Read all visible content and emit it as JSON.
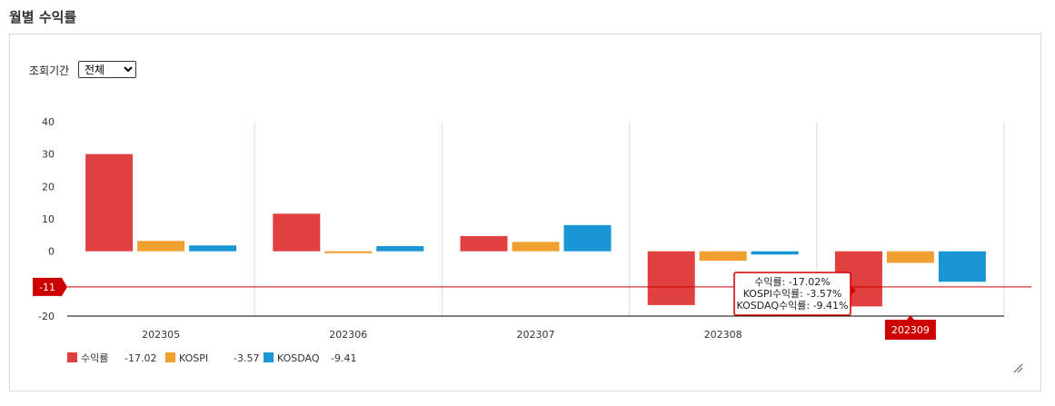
{
  "page": {
    "title": "월별 수익률",
    "period_label": "조회기간",
    "period_options": [
      "전체"
    ],
    "period_selected": "전체"
  },
  "chart_data": {
    "type": "bar",
    "categories": [
      "202305",
      "202306",
      "202307",
      "202308",
      "202309"
    ],
    "series": [
      {
        "name": "수익률",
        "color": "#e04040",
        "values": [
          30.0,
          11.6,
          4.7,
          -16.6,
          -17.02
        ]
      },
      {
        "name": "KOSPI",
        "color": "#f0a030",
        "values": [
          3.2,
          -0.6,
          2.9,
          -2.9,
          -3.57
        ]
      },
      {
        "name": "KOSDAQ",
        "color": "#1a96d4",
        "values": [
          1.8,
          1.6,
          8.1,
          -1.0,
          -9.41
        ]
      }
    ],
    "ylim": [
      -20,
      40
    ],
    "yticks": [
      40,
      30,
      20,
      10,
      0,
      -20
    ],
    "legend": [
      {
        "name": "수익률",
        "value": "-17.02"
      },
      {
        "name": "KOSPI",
        "value": "-3.57"
      },
      {
        "name": "KOSDAQ",
        "value": "-9.41"
      }
    ],
    "crosshair": {
      "y_label": "-11",
      "y_value": -11,
      "x_label": "202309",
      "x_index": 4
    },
    "tooltip": {
      "category_index": 4,
      "lines": [
        "수익률: -17.02%",
        "KOSPI수익률: -3.57%",
        "KOSDAQ수익률: -9.41%"
      ]
    },
    "grid": true,
    "legend_placement": "bottom-left",
    "accent_color": "#cc0000"
  }
}
